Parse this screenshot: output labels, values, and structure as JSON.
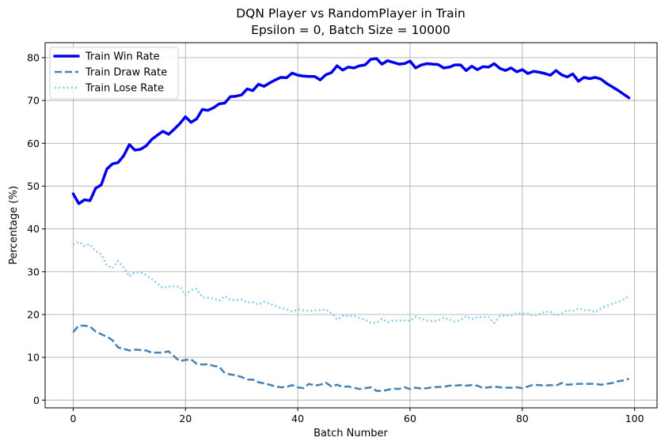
{
  "chart_data": {
    "type": "line",
    "title": "DQN Player vs RandomPlayer in Train",
    "subtitle": "Epsilon = 0, Batch Size = 10000",
    "xlabel": "Batch Number",
    "ylabel": "Percentage (%)",
    "xlim": [
      -5,
      104
    ],
    "ylim": [
      -1.8,
      83.5
    ],
    "xticks": [
      0,
      20,
      40,
      60,
      80,
      100
    ],
    "yticks": [
      0,
      10,
      20,
      30,
      40,
      50,
      60,
      70,
      80
    ],
    "grid": true,
    "legend_position": "top-left",
    "series": [
      {
        "name": "Train Win Rate",
        "color": "#0000ee",
        "style": "solid",
        "values": [
          48.2,
          45.9,
          46.8,
          46.6,
          49.5,
          50.3,
          54.0,
          55.2,
          55.5,
          57.1,
          59.7,
          58.4,
          58.6,
          59.4,
          60.9,
          61.9,
          62.8,
          62.1,
          63.3,
          64.6,
          66.2,
          64.9,
          65.7,
          67.9,
          67.7,
          68.3,
          69.2,
          69.4,
          70.9,
          71.0,
          71.3,
          72.7,
          72.3,
          73.8,
          73.3,
          74.1,
          74.8,
          75.4,
          75.3,
          76.4,
          75.9,
          75.7,
          75.6,
          75.6,
          74.8,
          76.0,
          76.5,
          78.1,
          77.1,
          77.8,
          77.6,
          78.1,
          78.3,
          79.6,
          79.8,
          78.5,
          79.3,
          78.9,
          78.5,
          78.6,
          79.2,
          77.6,
          78.3,
          78.6,
          78.5,
          78.4,
          77.6,
          77.8,
          78.3,
          78.3,
          77.0,
          78.0,
          77.2,
          77.9,
          77.8,
          78.6,
          77.5,
          77.0,
          77.6,
          76.7,
          77.2,
          76.3,
          76.8,
          76.6,
          76.3,
          75.9,
          77.0,
          76.0,
          75.5,
          76.2,
          74.5,
          75.4,
          75.1,
          75.4,
          75.0,
          74.0,
          73.2,
          72.4,
          71.5,
          70.6
        ]
      },
      {
        "name": "Train Draw Rate",
        "color": "#4682b4",
        "style": "dashed",
        "values": [
          15.9,
          17.4,
          17.4,
          17.2,
          16.0,
          15.4,
          14.8,
          14.0,
          12.3,
          12.0,
          11.6,
          11.8,
          11.7,
          11.6,
          11.1,
          11.1,
          11.1,
          11.4,
          10.2,
          9.1,
          9.4,
          9.5,
          8.5,
          8.3,
          8.4,
          8.0,
          7.8,
          6.3,
          6.0,
          5.8,
          5.4,
          4.8,
          4.8,
          4.2,
          3.9,
          3.6,
          3.2,
          3.0,
          3.1,
          3.5,
          3.0,
          2.8,
          3.8,
          3.4,
          3.6,
          4.1,
          3.2,
          3.6,
          3.1,
          3.2,
          2.9,
          2.6,
          2.8,
          3.0,
          2.2,
          2.1,
          2.4,
          2.7,
          2.6,
          3.0,
          2.6,
          2.9,
          2.7,
          2.8,
          3.0,
          3.1,
          3.1,
          3.4,
          3.4,
          3.5,
          3.4,
          3.5,
          3.4,
          2.8,
          3.0,
          3.2,
          3.0,
          2.9,
          2.9,
          3.0,
          2.8,
          3.2,
          3.6,
          3.5,
          3.4,
          3.5,
          3.4,
          4.0,
          3.6,
          3.7,
          3.8,
          3.8,
          3.8,
          3.8,
          3.6,
          3.8,
          4.0,
          4.4,
          4.6,
          5.0
        ]
      },
      {
        "name": "Train Lose Rate",
        "color": "#87ceeb",
        "style": "dotted",
        "values": [
          36.3,
          37.0,
          36.0,
          36.4,
          34.8,
          34.1,
          31.5,
          30.8,
          32.5,
          31.0,
          28.9,
          29.9,
          29.8,
          29.2,
          28.3,
          27.3,
          26.2,
          26.5,
          26.6,
          26.5,
          24.6,
          25.7,
          26.0,
          24.0,
          23.9,
          23.8,
          23.2,
          24.3,
          23.4,
          23.4,
          23.5,
          22.8,
          22.9,
          22.3,
          23.0,
          22.5,
          22.1,
          21.5,
          21.2,
          20.7,
          21.2,
          21.0,
          20.8,
          21.0,
          21.0,
          21.2,
          20.3,
          18.8,
          19.7,
          19.6,
          19.7,
          19.2,
          18.8,
          18.1,
          18.0,
          19.0,
          18.2,
          18.6,
          18.6,
          18.6,
          18.5,
          19.5,
          19.0,
          18.6,
          18.4,
          18.6,
          19.3,
          18.8,
          18.3,
          18.7,
          19.6,
          18.9,
          19.4,
          19.4,
          19.4,
          18.0,
          19.6,
          19.8,
          19.8,
          20.3,
          20.2,
          20.2,
          19.7,
          20.1,
          20.6,
          20.7,
          19.8,
          20.2,
          21.0,
          20.8,
          21.4,
          21.0,
          21.0,
          20.6,
          21.4,
          22.0,
          22.5,
          22.9,
          23.5,
          24.3
        ]
      }
    ]
  }
}
